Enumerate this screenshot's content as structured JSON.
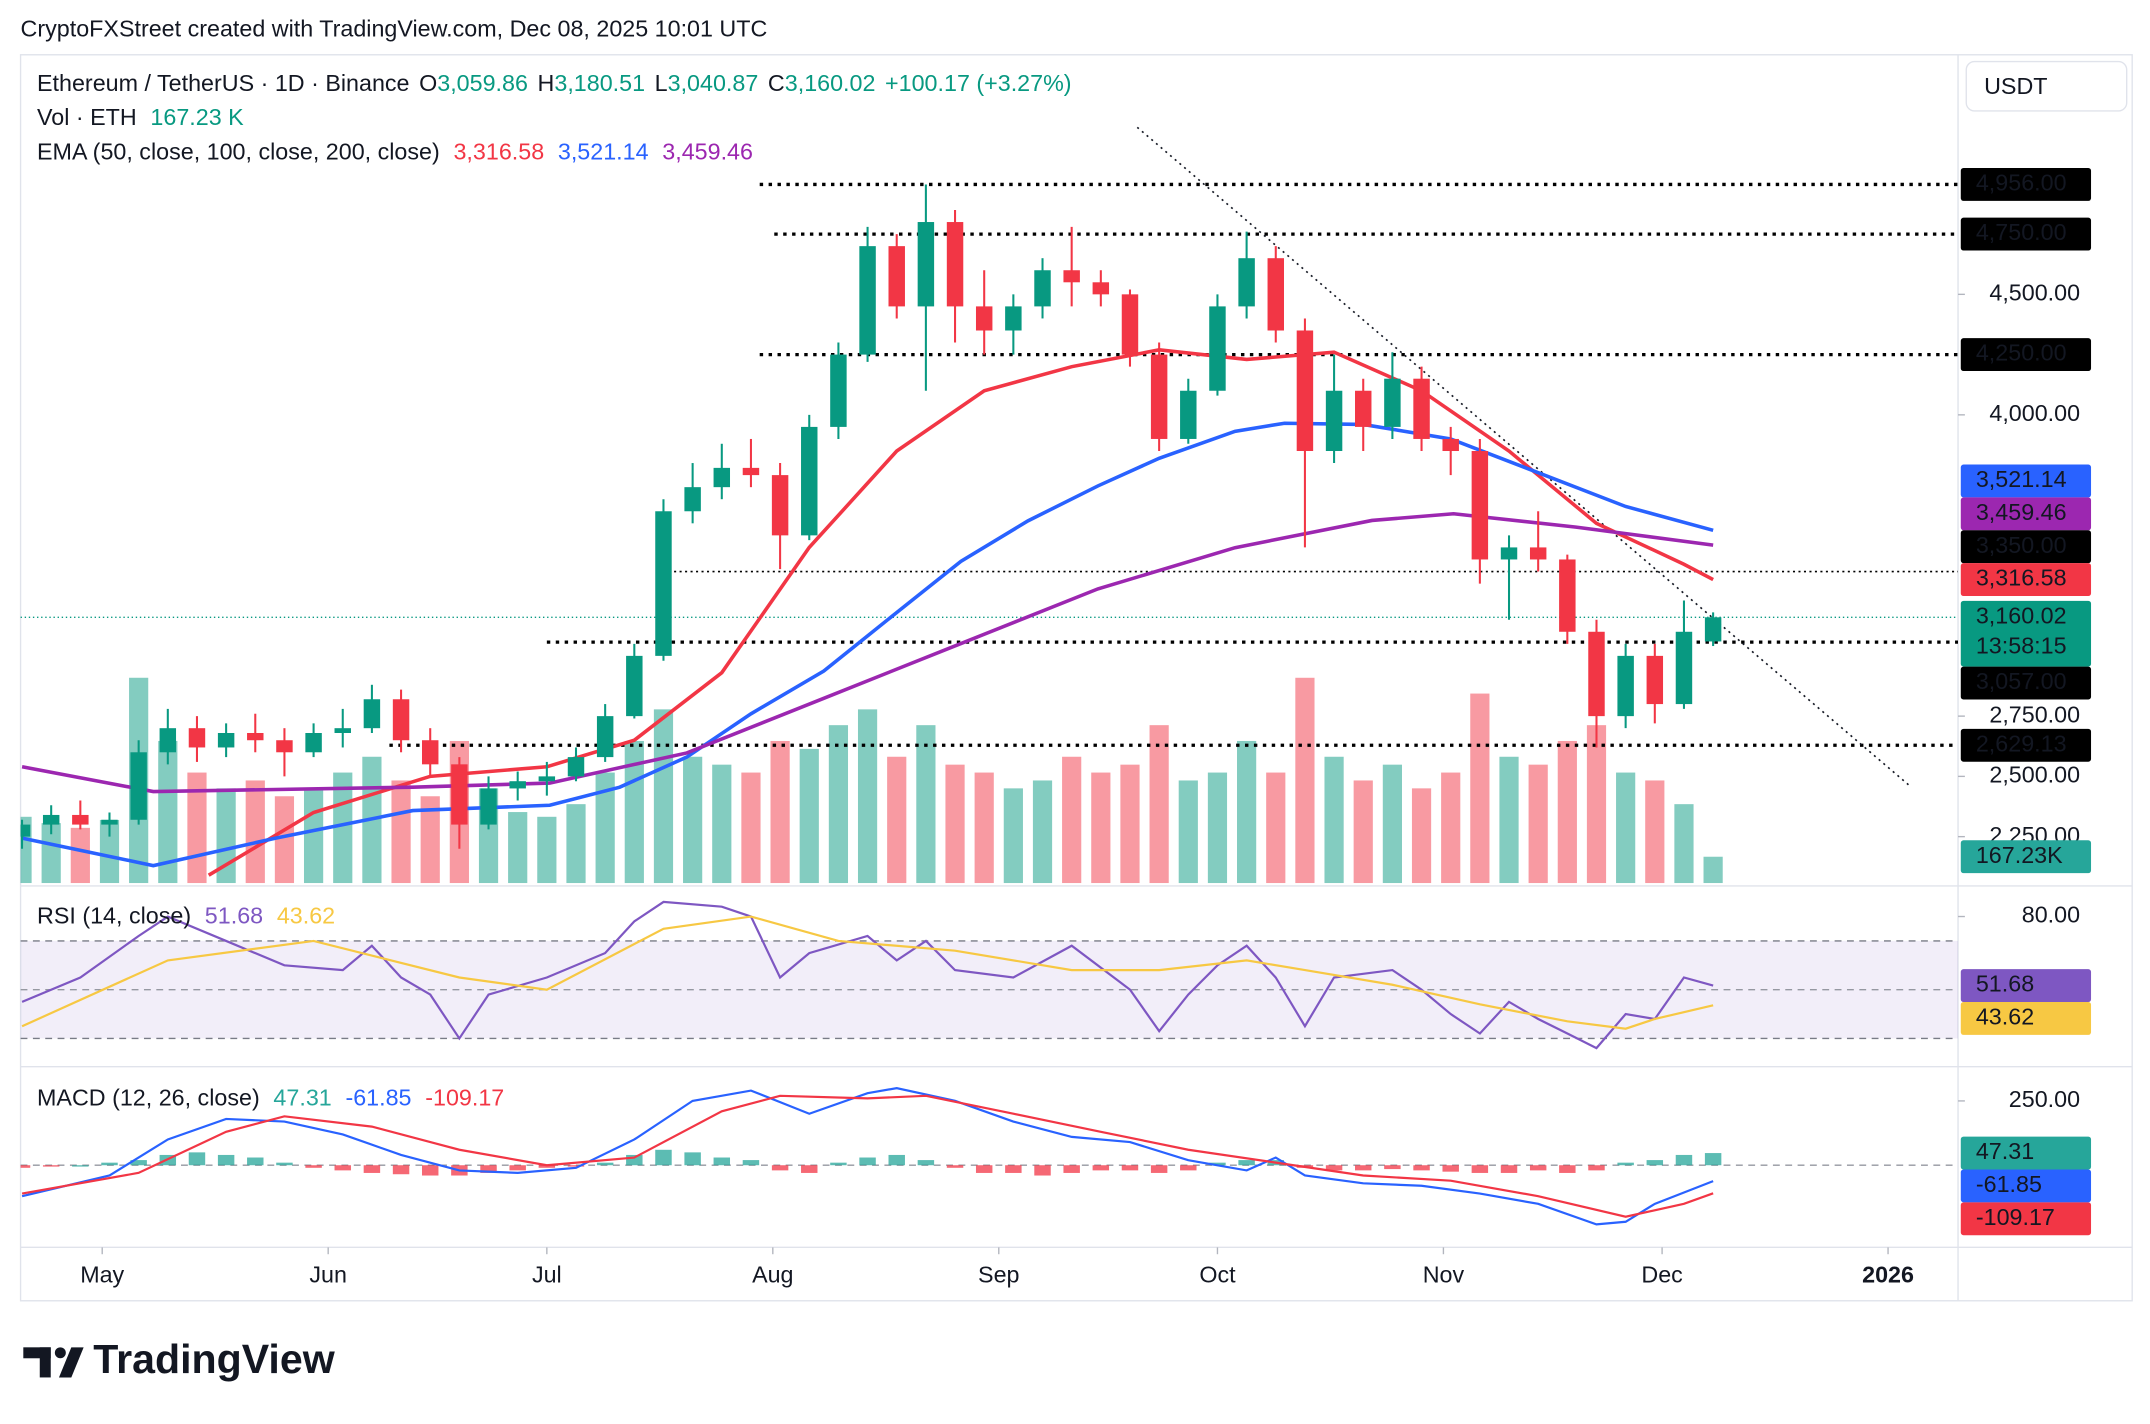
{
  "header": {
    "attribution": "CryptoFXStreet created with TradingView.com, Dec 08, 2025 10:01 UTC",
    "brand": "TradingView"
  },
  "chart_data": [
    {
      "type": "candlestick",
      "title": "Ethereum / TetherUS · 1D · Binance",
      "ohlc_legend": [
        {
          "key": "O",
          "value": "3,059.86"
        },
        {
          "key": "H",
          "value": "3,180.51"
        },
        {
          "key": "L",
          "value": "3,040.87"
        },
        {
          "key": "C",
          "value": "3,160.02"
        }
      ],
      "change": "+100.17 (+3.27%)",
      "volume_legend": {
        "label": "Vol · ETH",
        "value": "167.23 K"
      },
      "ema_legend": "EMA (50, close, 100, close, 200, close)",
      "currency": "USDT",
      "countdown": "13:58:15",
      "up_color": "#089981",
      "down_color": "#f23645",
      "xlim": [
        -0.05,
        66.4
      ],
      "xticks": [
        {
          "value": 2.75,
          "label": "May"
        },
        {
          "value": 10.5,
          "label": "Jun"
        },
        {
          "value": 18,
          "label": "Jul"
        },
        {
          "value": 25.75,
          "label": "Aug"
        },
        {
          "value": 33.5,
          "label": "Sep"
        },
        {
          "value": 41,
          "label": "Oct"
        },
        {
          "value": 48.75,
          "label": "Nov"
        },
        {
          "value": 56.25,
          "label": "Dec"
        },
        {
          "value": 64,
          "label": "2026"
        }
      ],
      "ylim": [
        2057,
        5494
      ],
      "yticks": [
        {
          "value": 2250,
          "label": "2,250.00"
        },
        {
          "value": 2500,
          "label": "2,500.00"
        },
        {
          "value": 2750,
          "label": "2,750.00"
        },
        {
          "value": 4000,
          "label": "4,000.00"
        },
        {
          "value": 4500,
          "label": "4,500.00"
        }
      ],
      "open": [
        2250,
        2300,
        2340,
        2300,
        2320,
        2600,
        2700,
        2620,
        2680,
        2650,
        2600,
        2680,
        2700,
        2820,
        2650,
        2550,
        2300,
        2450,
        2480,
        2500,
        2580,
        2750,
        3000,
        3600,
        3700,
        3780,
        3750,
        3500,
        3950,
        4250,
        4700,
        4450,
        4800,
        4450,
        4350,
        4450,
        4600,
        4550,
        4500,
        4250,
        3900,
        4100,
        4450,
        4650,
        4350,
        3850,
        4100,
        3950,
        4150,
        3900,
        3850,
        3400,
        3450,
        3400,
        3100,
        2750,
        3000,
        2800,
        3059.86
      ],
      "high": [
        2320,
        2380,
        2400,
        2350,
        2650,
        2780,
        2750,
        2720,
        2760,
        2700,
        2720,
        2780,
        2880,
        2860,
        2700,
        2580,
        2500,
        2520,
        2560,
        2620,
        2800,
        3050,
        3650,
        3800,
        3880,
        3900,
        3800,
        4000,
        4300,
        4780,
        4750,
        4956,
        4850,
        4600,
        4500,
        4650,
        4780,
        4600,
        4520,
        4300,
        4150,
        4500,
        4760,
        4700,
        4400,
        4250,
        4150,
        4260,
        4200,
        3950,
        3900,
        3500,
        3600,
        3420,
        3150,
        3050,
        3050,
        3230,
        3180.51
      ],
      "low": [
        2200,
        2260,
        2280,
        2250,
        2300,
        2550,
        2560,
        2580,
        2600,
        2500,
        2580,
        2620,
        2680,
        2600,
        2500,
        2200,
        2280,
        2400,
        2420,
        2480,
        2560,
        2740,
        2980,
        3550,
        3650,
        3700,
        3360,
        3480,
        3900,
        4220,
        4400,
        4100,
        4300,
        4250,
        4250,
        4400,
        4450,
        4450,
        4200,
        3850,
        3880,
        4080,
        4400,
        4300,
        3450,
        3800,
        3850,
        3900,
        3850,
        3750,
        3300,
        3150,
        3350,
        3050,
        2620,
        2700,
        2720,
        2780,
        3040.87
      ],
      "close": [
        2300,
        2340,
        2300,
        2320,
        2600,
        2700,
        2620,
        2680,
        2650,
        2600,
        2680,
        2700,
        2820,
        2650,
        2550,
        2300,
        2450,
        2480,
        2500,
        2580,
        2750,
        3000,
        3600,
        3700,
        3780,
        3750,
        3500,
        3950,
        4250,
        4700,
        4450,
        4800,
        4450,
        4350,
        4450,
        4600,
        4550,
        4500,
        4250,
        3900,
        4100,
        4450,
        4650,
        4350,
        3850,
        4100,
        3950,
        4150,
        3900,
        3850,
        3400,
        3450,
        3400,
        3100,
        2750,
        3000,
        2800,
        3100,
        3160.02
      ],
      "volume": {
        "values": [
          420,
          380,
          350,
          400,
          1300,
          900,
          700,
          600,
          650,
          550,
          600,
          700,
          800,
          650,
          550,
          900,
          600,
          450,
          420,
          500,
          700,
          900,
          1100,
          800,
          750,
          700,
          900,
          850,
          1000,
          1100,
          800,
          1000,
          750,
          700,
          600,
          650,
          800,
          700,
          750,
          1000,
          650,
          700,
          900,
          700,
          1300,
          800,
          650,
          750,
          600,
          700,
          1200,
          800,
          750,
          900,
          1000,
          700,
          650,
          500,
          167.23
        ],
        "value_label": "167.23K",
        "up_color": "rgba(8,153,129,0.5)",
        "down_color": "rgba(242,54,69,0.5)",
        "label_color": "#26a69a"
      },
      "series": [
        {
          "color": "#f23645",
          "x": [
            6.4,
            10,
            14,
            18,
            21,
            24,
            27,
            30,
            33,
            36,
            39,
            42,
            45,
            48,
            51,
            54,
            57,
            58
          ],
          "values": [
            2090,
            2350,
            2500,
            2540,
            2650,
            2930,
            3450,
            3850,
            4100,
            4200,
            4270,
            4230,
            4260,
            4100,
            3850,
            3550,
            3380,
            3316.58
          ],
          "value_label": "3,316.58"
        },
        {
          "color": "#2962ff",
          "x": [
            0,
            4.5,
            8.7,
            13.4,
            18.1,
            20.5,
            22.8,
            25,
            27.5,
            30,
            32.2,
            34.5,
            36.9,
            39,
            41.6,
            43.3,
            46,
            49,
            52,
            55,
            58
          ],
          "values": [
            2244,
            2130,
            2244,
            2358,
            2380,
            2455,
            2580,
            2760,
            2937,
            3180,
            3392,
            3560,
            3705,
            3820,
            3932,
            3965,
            3960,
            3900,
            3760,
            3620,
            3521.14
          ],
          "value_label": "3,521.14"
        },
        {
          "color": "#9c27b0",
          "x": [
            0,
            4.5,
            13.4,
            18.1,
            22.8,
            27.5,
            32.2,
            36.9,
            41.6,
            46.3,
            49.1,
            53.3,
            58
          ],
          "values": [
            2540,
            2437,
            2455,
            2472,
            2597,
            2824,
            3051,
            3278,
            3449,
            3562,
            3590,
            3534,
            3459.46
          ],
          "value_label": "3,459.46"
        }
      ],
      "levels": [
        {
          "value": 4956,
          "label": "4,956.00",
          "start": 25.3
        },
        {
          "value": 4750,
          "label": "4,750.00",
          "start": 25.8
        },
        {
          "value": 4250,
          "label": "4,250.00",
          "start": 25.3
        },
        {
          "value": 3350,
          "label": "3,350.00",
          "start": 21.8
        },
        {
          "value": 3057,
          "label": "3,057.00",
          "start": 18.0
        },
        {
          "value": 2629.13,
          "label": "2,629.13",
          "start": 12.6
        }
      ],
      "trendline": {
        "x": [
          38.25,
          64.8
        ],
        "y": [
          5193,
          2455
        ]
      }
    },
    {
      "type": "line",
      "title": "RSI (14, close)",
      "ylim": [
        19,
        92
      ],
      "yticks": [
        {
          "value": 80,
          "label": "80.00"
        }
      ],
      "bands": [
        70,
        30
      ],
      "midline": 50,
      "band_color": "#7e57c2",
      "series": [
        {
          "color": "#7e57c2",
          "x": [
            0,
            2,
            4,
            5,
            7,
            9,
            11,
            12,
            13,
            14,
            15,
            16,
            18,
            20,
            21,
            22,
            24,
            25,
            26,
            27,
            29,
            30,
            31,
            32,
            34,
            36,
            38,
            39,
            40,
            41,
            42,
            43,
            44,
            45,
            47,
            48,
            49,
            50,
            51,
            52,
            53,
            54,
            55,
            56,
            57,
            58
          ],
          "values": [
            45,
            55,
            72,
            80,
            70,
            60,
            58,
            68,
            55,
            48,
            30,
            48,
            55,
            65,
            78,
            86,
            84,
            80,
            55,
            65,
            72,
            62,
            70,
            58,
            55,
            68,
            50,
            33,
            48,
            60,
            68,
            55,
            35,
            55,
            58,
            50,
            40,
            32,
            45,
            38,
            32,
            26,
            40,
            38,
            55,
            51.68
          ]
        },
        {
          "color": "#f7c843",
          "x": [
            0,
            5,
            10,
            15,
            18,
            22,
            25,
            28,
            32,
            36,
            39,
            42,
            44,
            47,
            50,
            53,
            55,
            56,
            58
          ],
          "values": [
            35,
            62,
            70,
            55,
            50,
            75,
            80,
            70,
            66,
            58,
            58,
            62,
            58,
            52,
            44,
            37,
            34,
            38,
            43.62
          ]
        }
      ]
    },
    {
      "type": "line",
      "title": "MACD (12, 26, close)",
      "ylim": [
        -314,
        378
      ],
      "yticks": [
        {
          "value": 250,
          "label": "250.00"
        }
      ],
      "midline": 0,
      "histogram": {
        "values": [
          -10,
          -5,
          0,
          10,
          20,
          40,
          50,
          40,
          30,
          10,
          -10,
          -20,
          -30,
          -35,
          -40,
          -40,
          -30,
          -20,
          -10,
          -5,
          10,
          40,
          60,
          50,
          30,
          20,
          -20,
          -30,
          10,
          30,
          40,
          20,
          -10,
          -30,
          -30,
          -40,
          -30,
          -20,
          -20,
          -30,
          -20,
          10,
          20,
          20,
          -10,
          -20,
          -20,
          -15,
          -20,
          -25,
          -30,
          -30,
          -20,
          -30,
          -20,
          10,
          20,
          40,
          47.31
        ],
        "up_color": "#26a69a",
        "down_color": "#f23645"
      },
      "series": [
        {
          "color": "#2962ff",
          "x": [
            0,
            3,
            5,
            7,
            9,
            11,
            13,
            15,
            17,
            19,
            21,
            23,
            25,
            27,
            29,
            30,
            32,
            34,
            36,
            38,
            40,
            42,
            43,
            44,
            46,
            48,
            50,
            52,
            54,
            55,
            56,
            58
          ],
          "values": [
            -120,
            -40,
            100,
            180,
            170,
            120,
            40,
            -20,
            -30,
            -10,
            100,
            250,
            290,
            200,
            280,
            300,
            250,
            170,
            110,
            90,
            20,
            -20,
            30,
            -40,
            -70,
            -80,
            -110,
            -150,
            -230,
            -220,
            -150,
            -61.85
          ]
        },
        {
          "color": "#f23645",
          "x": [
            0,
            4,
            7,
            9,
            12,
            15,
            18,
            21,
            24,
            26,
            29,
            31,
            34,
            37,
            40,
            43,
            46,
            49,
            52,
            55,
            57,
            58
          ],
          "values": [
            -110,
            -30,
            130,
            190,
            150,
            60,
            0,
            30,
            210,
            270,
            260,
            270,
            200,
            130,
            60,
            10,
            -40,
            -60,
            -120,
            -200,
            -150,
            -109.17
          ]
        }
      ]
    }
  ]
}
